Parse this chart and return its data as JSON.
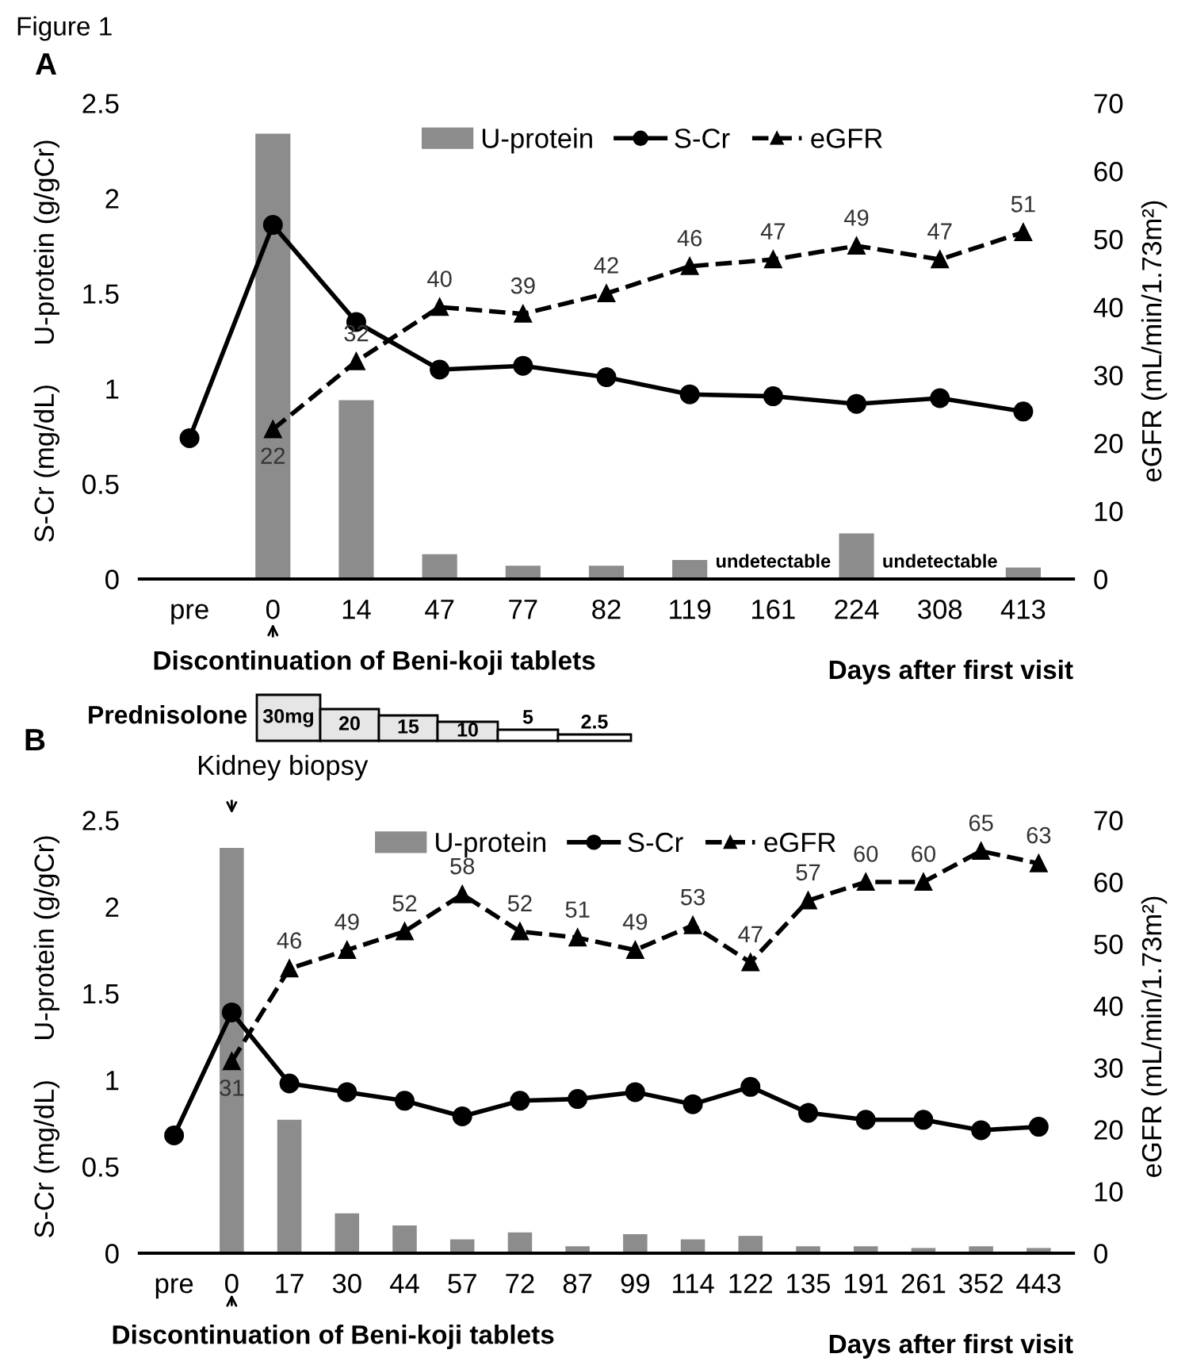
{
  "chart_data": [
    {
      "type": "bar",
      "title": "A",
      "categories": [
        "pre",
        "0",
        "14",
        "47",
        "77",
        "82",
        "119",
        "161",
        "224",
        "308",
        "413"
      ],
      "xlabel": "Days after first visit",
      "ylabel": "S-Cr (mg/dL)     U-protein (g/gCr)",
      "y2label": "eGFR (mL/min/1.73m²)",
      "ylim": [
        0,
        2.5
      ],
      "yticks": [
        0,
        0.5,
        1,
        1.5,
        2,
        2.5
      ],
      "y2lim": [
        0,
        70
      ],
      "y2ticks": [
        0,
        10,
        20,
        30,
        40,
        50,
        60,
        70
      ],
      "legend": "top",
      "grid": false,
      "series": [
        {
          "name": "U-protein",
          "color": "#8c8c8c",
          "values": [
            null,
            2.34,
            0.94,
            0.13,
            0.07,
            0.07,
            0.1,
            null,
            0.24,
            null,
            0.06
          ]
        },
        {
          "name": "S-Cr",
          "type": "line",
          "color": "#000000",
          "marker": "circle",
          "line_style": "solid",
          "values": [
            0.74,
            1.86,
            1.35,
            1.1,
            1.12,
            1.06,
            0.97,
            0.96,
            0.92,
            0.95,
            0.88
          ]
        },
        {
          "name": "eGFR",
          "type": "line",
          "axis": "y2",
          "color": "#000000",
          "marker": "triangle",
          "line_style": "dashed",
          "values": [
            null,
            22,
            32,
            40,
            39,
            42,
            46,
            47,
            49,
            47,
            51
          ],
          "value_labels": [
            null,
            "22",
            "32",
            "40",
            "39",
            "42",
            "46",
            "47",
            "49",
            "47",
            "51"
          ]
        }
      ],
      "annotations": [
        "Figure 1",
        "Discontinuation of Beni-koji tablets",
        "undetectable",
        "undetectable"
      ]
    },
    {
      "type": "bar",
      "title": "B",
      "categories": [
        "pre",
        "0",
        "17",
        "30",
        "44",
        "57",
        "72",
        "87",
        "99",
        "114",
        "122",
        "135",
        "191",
        "261",
        "352",
        "443"
      ],
      "xlabel": "Days after first visit",
      "ylabel": "S-Cr (mg/dL)     U-protein (g/gCr)",
      "y2label": "eGFR (mL/min/1.73m²)",
      "ylim": [
        0,
        2.5
      ],
      "yticks": [
        0,
        0.5,
        1,
        1.5,
        2,
        2.5
      ],
      "y2lim": [
        0,
        70
      ],
      "y2ticks": [
        0,
        10,
        20,
        30,
        40,
        50,
        60,
        70
      ],
      "legend": "top",
      "grid": false,
      "series": [
        {
          "name": "U-protein",
          "color": "#8c8c8c",
          "values": [
            null,
            2.34,
            0.77,
            0.23,
            0.16,
            0.08,
            0.12,
            0.04,
            0.11,
            0.08,
            0.1,
            0.04,
            0.04,
            0.03,
            0.04,
            0.03
          ]
        },
        {
          "name": "S-Cr",
          "type": "line",
          "color": "#000000",
          "marker": "circle",
          "line_style": "solid",
          "values": [
            0.68,
            1.39,
            0.98,
            0.93,
            0.88,
            0.79,
            0.88,
            0.89,
            0.93,
            0.86,
            0.96,
            0.81,
            0.77,
            0.77,
            0.71,
            0.73
          ]
        },
        {
          "name": "eGFR",
          "type": "line",
          "axis": "y2",
          "color": "#000000",
          "marker": "triangle",
          "line_style": "dashed",
          "values": [
            null,
            31,
            46,
            49,
            52,
            58,
            52,
            51,
            49,
            53,
            47,
            57,
            60,
            60,
            65,
            63
          ],
          "value_labels": [
            null,
            "31",
            "46",
            "49",
            "52",
            "58",
            "52",
            "51",
            "49",
            "53",
            "47",
            "57",
            "60",
            "60",
            "65",
            "63"
          ]
        }
      ],
      "annotations": [
        "Kidney biopsy",
        "Discontinuation of Beni-koji tablets",
        "Prednisolone",
        "30mg",
        "20",
        "15",
        "10",
        "5",
        "2.5"
      ]
    }
  ]
}
